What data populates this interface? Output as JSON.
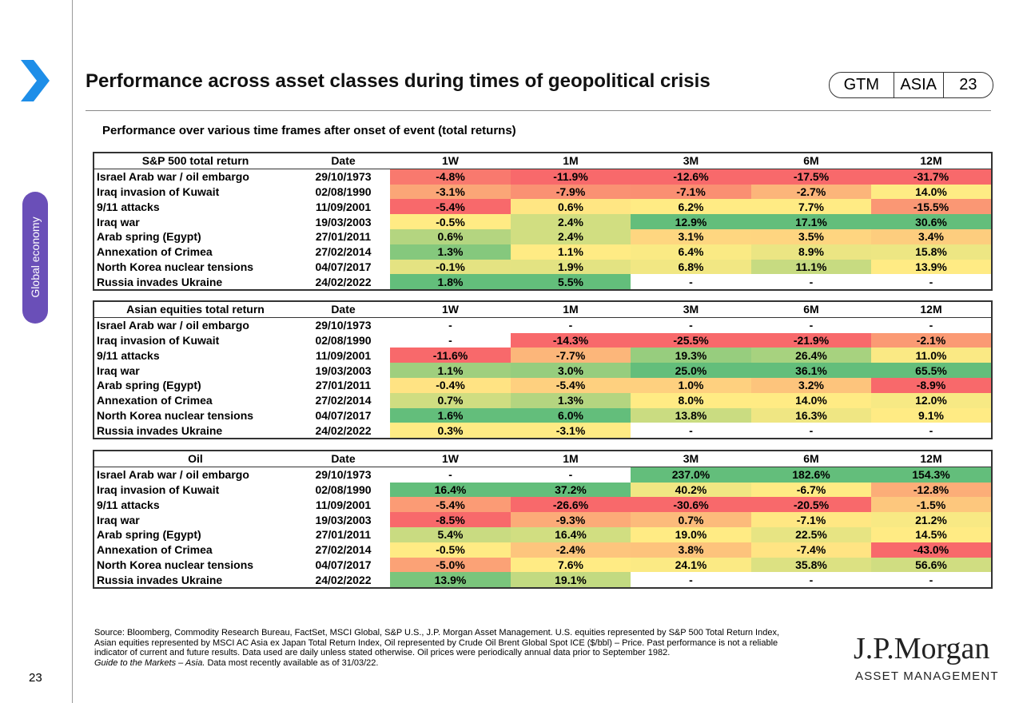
{
  "header": {
    "title": "Performance across asset classes during times of geopolitical crisis",
    "badge": [
      "GTM",
      "ASIA",
      "23"
    ]
  },
  "sidebar": {
    "section": "Global economy"
  },
  "subtitle": "Performance over various time frames after onset of event (total returns)",
  "tables": [
    {
      "columns": [
        "S&P 500 total return",
        "Date",
        "1W",
        "1M",
        "3M",
        "6M",
        "12M"
      ],
      "rows": [
        [
          "Israel Arab war / oil embargo",
          "29/10/1973",
          "-4.8%",
          "-11.9%",
          "-12.6%",
          "-17.5%",
          "-31.7%"
        ],
        [
          "Iraq invasion of Kuwait",
          "02/08/1990",
          "-3.1%",
          "-7.9%",
          "-7.1%",
          "-2.7%",
          "14.0%"
        ],
        [
          "9/11 attacks",
          "11/09/2001",
          "-5.4%",
          "0.6%",
          "6.2%",
          "7.7%",
          "-15.5%"
        ],
        [
          "Iraq war",
          "19/03/2003",
          "-0.5%",
          "2.4%",
          "12.9%",
          "17.1%",
          "30.6%"
        ],
        [
          "Arab spring (Egypt)",
          "27/01/2011",
          "0.6%",
          "2.4%",
          "3.1%",
          "3.5%",
          "3.4%"
        ],
        [
          "Annexation of Crimea",
          "27/02/2014",
          "1.3%",
          "1.1%",
          "6.4%",
          "8.9%",
          "15.8%"
        ],
        [
          "North Korea nuclear tensions",
          "04/07/2017",
          "-0.1%",
          "1.9%",
          "6.8%",
          "11.1%",
          "13.9%"
        ],
        [
          "Russia invades Ukraine",
          "24/02/2022",
          "1.8%",
          "5.5%",
          "-",
          "-",
          "-"
        ]
      ]
    },
    {
      "columns": [
        "Asian equities total return",
        "Date",
        "1W",
        "1M",
        "3M",
        "6M",
        "12M"
      ],
      "rows": [
        [
          "Israel Arab war / oil embargo",
          "29/10/1973",
          "-",
          "-",
          "-",
          "-",
          "-"
        ],
        [
          "Iraq invasion of Kuwait",
          "02/08/1990",
          "-",
          "-14.3%",
          "-25.5%",
          "-21.9%",
          "-2.1%"
        ],
        [
          "9/11 attacks",
          "11/09/2001",
          "-11.6%",
          "-7.7%",
          "19.3%",
          "26.4%",
          "11.0%"
        ],
        [
          "Iraq war",
          "19/03/2003",
          "1.1%",
          "3.0%",
          "25.0%",
          "36.1%",
          "65.5%"
        ],
        [
          "Arab spring (Egypt)",
          "27/01/2011",
          "-0.4%",
          "-5.4%",
          "1.0%",
          "3.2%",
          "-8.9%"
        ],
        [
          "Annexation of Crimea",
          "27/02/2014",
          "0.7%",
          "1.3%",
          "8.0%",
          "14.0%",
          "12.0%"
        ],
        [
          "North Korea nuclear tensions",
          "04/07/2017",
          "1.6%",
          "6.0%",
          "13.8%",
          "16.3%",
          "9.1%"
        ],
        [
          "Russia invades Ukraine",
          "24/02/2022",
          "0.3%",
          "-3.1%",
          "-",
          "-",
          "-"
        ]
      ]
    },
    {
      "columns": [
        "Oil",
        "Date",
        "1W",
        "1M",
        "3M",
        "6M",
        "12M"
      ],
      "rows": [
        [
          "Israel Arab war / oil embargo",
          "29/10/1973",
          "-",
          "-",
          "237.0%",
          "182.6%",
          "154.3%"
        ],
        [
          "Iraq invasion of Kuwait",
          "02/08/1990",
          "16.4%",
          "37.2%",
          "40.2%",
          "-6.7%",
          "-12.8%"
        ],
        [
          "9/11 attacks",
          "11/09/2001",
          "-5.4%",
          "-26.6%",
          "-30.6%",
          "-20.5%",
          "-1.5%"
        ],
        [
          "Iraq war",
          "19/03/2003",
          "-8.5%",
          "-9.3%",
          "0.7%",
          "-7.1%",
          "21.2%"
        ],
        [
          "Arab spring (Egypt)",
          "27/01/2011",
          "5.4%",
          "16.4%",
          "19.0%",
          "22.5%",
          "14.5%"
        ],
        [
          "Annexation of Crimea",
          "27/02/2014",
          "-0.5%",
          "-2.4%",
          "3.8%",
          "-7.4%",
          "-43.0%"
        ],
        [
          "North Korea nuclear tensions",
          "04/07/2017",
          "-5.0%",
          "7.6%",
          "24.1%",
          "35.8%",
          "56.6%"
        ],
        [
          "Russia invades Ukraine",
          "24/02/2022",
          "13.9%",
          "19.1%",
          "-",
          "-",
          "-"
        ]
      ]
    }
  ],
  "footer": {
    "source": "Source: Bloomberg, Commodity Research Bureau, FactSet, MSCI Global, S&P U.S., J.P. Morgan Asset Management. U.S. equities represented by S&P 500 Total Return Index, Asian equities represented by MSCI AC Asia ex Japan Total Return Index, Oil represented by Crude Oil Brent Global Spot ICE ($/bbl) – Price. Past performance is not a reliable indicator of current and future results. Data used are daily unless stated otherwise. Oil prices were periodically annual data prior to September 1982.",
    "guide": "Guide to the Markets – Asia.",
    "note": " Data most recently available as of 31/03/22."
  },
  "page_number": "23",
  "logo": {
    "name": "J.P.Morgan",
    "tagline": "ASSET MANAGEMENT"
  }
}
